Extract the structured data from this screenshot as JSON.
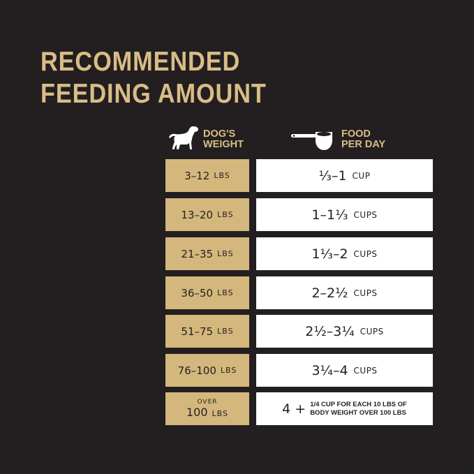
{
  "title": {
    "line1": "RECOMMENDED",
    "line2": "FEEDING AMOUNT"
  },
  "headers": {
    "weight_line1": "DOG'S",
    "weight_line2": "WEIGHT",
    "food_line1": "FOOD",
    "food_line2": "PER DAY",
    "weight_icon": "dog-icon",
    "food_icon": "measuring-cup-icon"
  },
  "colors": {
    "background": "#231f20",
    "gold": "#d4b77d",
    "title": "#d8bd86",
    "food_cell": "#ffffff"
  },
  "rows": [
    {
      "weight": "3–12",
      "weight_unit": "LBS",
      "amount": "⅓–1",
      "amount_unit": "CUP"
    },
    {
      "weight": "13–20",
      "weight_unit": "LBS",
      "amount": "1–1⅓",
      "amount_unit": "CUPS"
    },
    {
      "weight": "21–35",
      "weight_unit": "LBS",
      "amount": "1⅓–2",
      "amount_unit": "CUPS"
    },
    {
      "weight": "36–50",
      "weight_unit": "LBS",
      "amount": "2–2½",
      "amount_unit": "CUPS"
    },
    {
      "weight": "51–75",
      "weight_unit": "LBS",
      "amount": "2½–3¼",
      "amount_unit": "CUPS"
    },
    {
      "weight": "76–100",
      "weight_unit": "LBS",
      "amount": "3¼–4",
      "amount_unit": "CUPS"
    }
  ],
  "last_row": {
    "prefix": "OVER",
    "weight": "100",
    "weight_unit": "LBS",
    "amount": "4 +",
    "note_line1": "1/4 CUP FOR EACH 10 LBS OF",
    "note_line2": "BODY WEIGHT OVER 100 LBS"
  }
}
